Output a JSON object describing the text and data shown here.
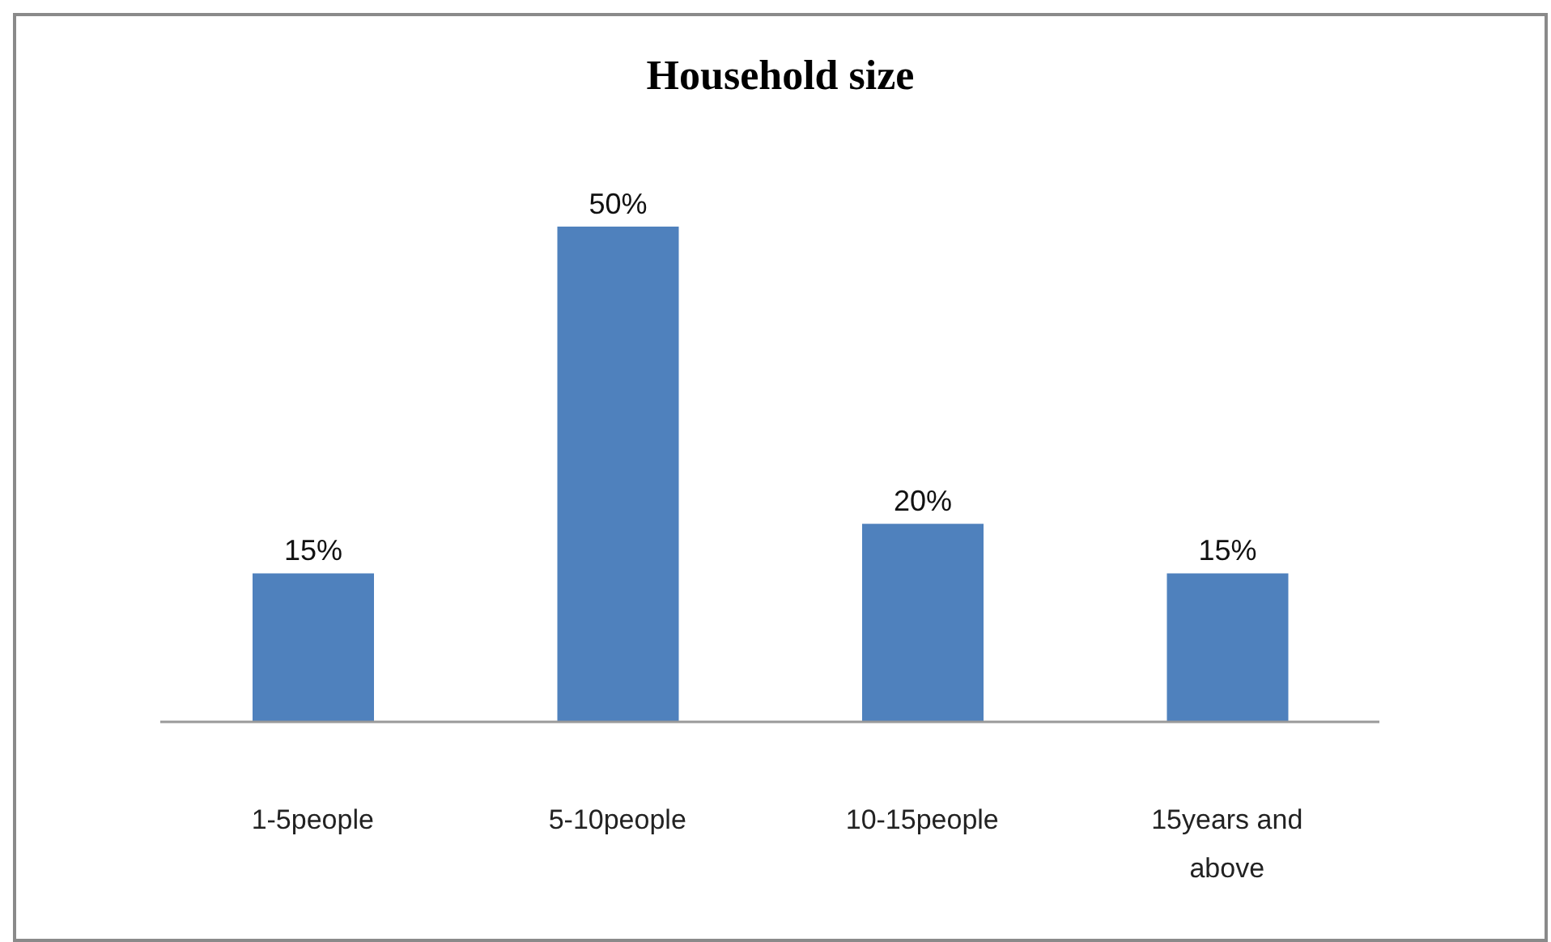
{
  "chart_data": {
    "type": "bar",
    "title": "Household size",
    "categories": [
      "1-5people",
      "5-10people",
      "10-15people",
      "15years and above"
    ],
    "values": [
      15,
      50,
      20,
      15
    ],
    "value_labels": [
      "15%",
      "50%",
      "20%",
      "15%"
    ],
    "color": "#4f81bd"
  }
}
